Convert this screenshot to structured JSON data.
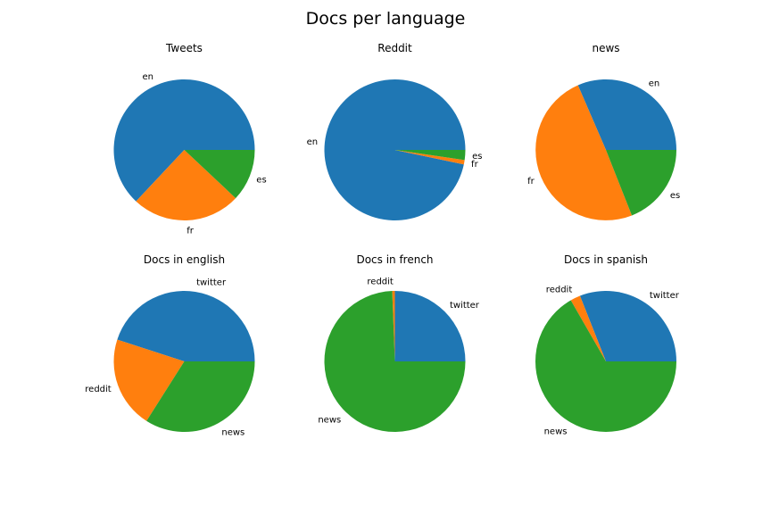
{
  "title": "Docs per language",
  "colors": [
    "#1f77b4",
    "#ff7f0e",
    "#2ca02c"
  ],
  "chart_data": [
    {
      "type": "pie",
      "title": "Tweets",
      "labels": [
        "en",
        "fr",
        "es"
      ],
      "values": [
        63,
        25,
        12
      ]
    },
    {
      "type": "pie",
      "title": "Reddit",
      "labels": [
        "en",
        "fr",
        "es"
      ],
      "values": [
        96.7,
        1.0,
        2.3
      ]
    },
    {
      "type": "pie",
      "title": "news",
      "labels": [
        "en",
        "fr",
        "es"
      ],
      "values": [
        31.5,
        49.5,
        19.0
      ]
    },
    {
      "type": "pie",
      "title": "Docs in english",
      "labels": [
        "twitter",
        "reddit",
        "news"
      ],
      "values": [
        45,
        21,
        34
      ]
    },
    {
      "type": "pie",
      "title": "Docs in french",
      "labels": [
        "twitter",
        "reddit",
        "news"
      ],
      "values": [
        25,
        0.6,
        74.4
      ]
    },
    {
      "type": "pie",
      "title": "Docs in spanish",
      "labels": [
        "twitter",
        "reddit",
        "news"
      ],
      "values": [
        31,
        2.3,
        66.7
      ]
    }
  ]
}
